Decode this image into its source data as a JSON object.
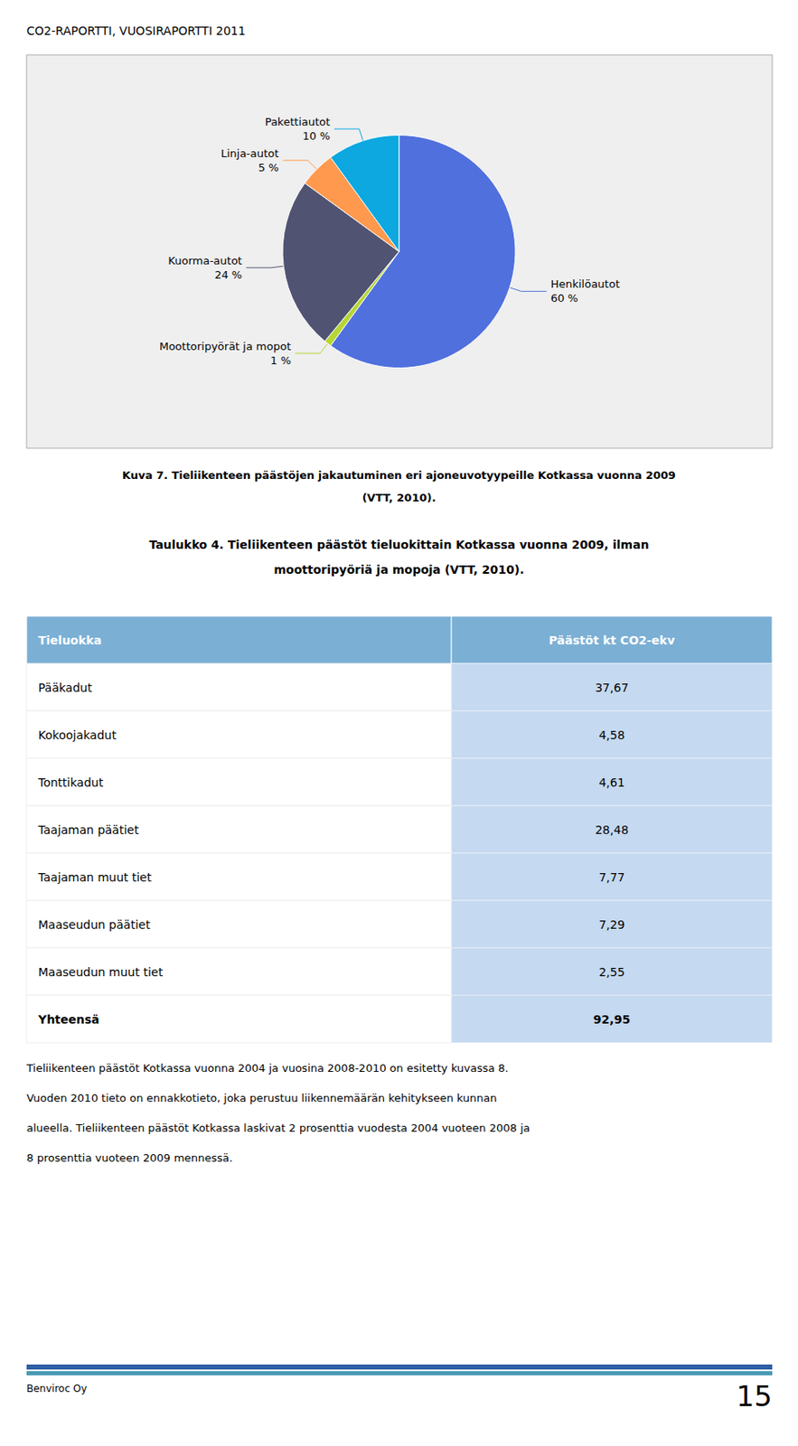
{
  "chart_data": [
    {
      "type": "pie",
      "title": "Kuva 7. Tieliikenteen päästöjen jakautuminen eri ajoneuvotyypeille Kotkassa vuonna 2009",
      "subtitle": "(VTT, 2010).",
      "categories": [
        "Henkilöautot",
        "Moottoripyörät ja mopot",
        "Kuorma-autot",
        "Linja-autot",
        "Pakettiautot"
      ],
      "values": [
        60,
        1,
        24,
        5,
        10
      ],
      "value_labels": [
        "60 %",
        "1 %",
        "24 %",
        "5 %",
        "10 %"
      ],
      "data_labels": true
    },
    {
      "type": "table",
      "title": "Taulukko 4. Tieliikenteen päästöt tieluokittain Kotkassa vuonna 2009, ilman",
      "subtitle": "moottoripyöriä ja mopoja (VTT, 2010).",
      "columns": [
        "Tieluokka",
        "Päästöt kt CO2-ekv"
      ],
      "rows": [
        [
          "Pääkadut",
          "37,67"
        ],
        [
          "Kokoojakadut",
          "4,58"
        ],
        [
          "Tonttikadut",
          "4,61"
        ],
        [
          "Taajaman päätiet",
          "28,48"
        ],
        [
          "Taajaman muut tiet",
          "7,77"
        ],
        [
          "Maaseudun päätiet",
          "7,29"
        ],
        [
          "Maaseudun muut tiet",
          "2,55"
        ],
        [
          "Yhteensä",
          "92,95"
        ]
      ]
    }
  ],
  "annotations": [
    "CO2-RAPORTTI, VUOSIRAPORTTI 2011",
    "Tieliikenteen päästöt Kotkassa vuonna 2004 ja vuosina 2008-2010 on esitetty kuvassa 8.",
    "Vuoden 2010 tieto on ennakkotieto, joka perustuu liikennemäärän kehitykseen kunnan",
    "alueella. Tieliikenteen päästöt Kotkassa laskivat 2 prosenttia vuodesta 2004 vuoteen 2008 ja",
    "8 prosenttia vuoteen 2009 mennessä.",
    "Benviroc Oy",
    "15"
  ]
}
